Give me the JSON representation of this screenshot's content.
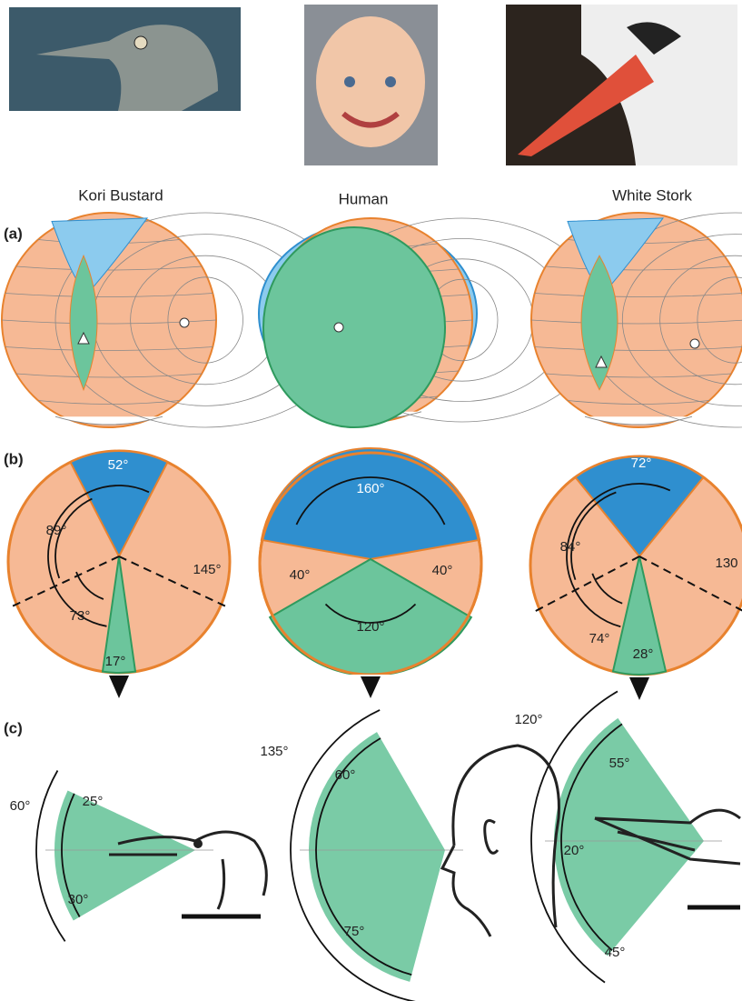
{
  "columns": [
    {
      "name": "Kori Bustard",
      "b_angles": [
        "52°",
        "89°",
        "145°",
        "73°",
        "17°"
      ],
      "c_angles": [
        "60°",
        "25°",
        "30°"
      ]
    },
    {
      "name": "Human",
      "b_angles": [
        "160°",
        "40°",
        "40°",
        "120°"
      ],
      "c_angles": [
        "135°",
        "60°",
        "75°"
      ]
    },
    {
      "name": "White Stork",
      "b_angles": [
        "72°",
        "84°",
        "130",
        "74°",
        "28°"
      ],
      "c_angles": [
        "120°",
        "55°",
        "20°",
        "45°"
      ]
    }
  ],
  "panels": [
    "(a)",
    "(b)",
    "(c)"
  ]
}
